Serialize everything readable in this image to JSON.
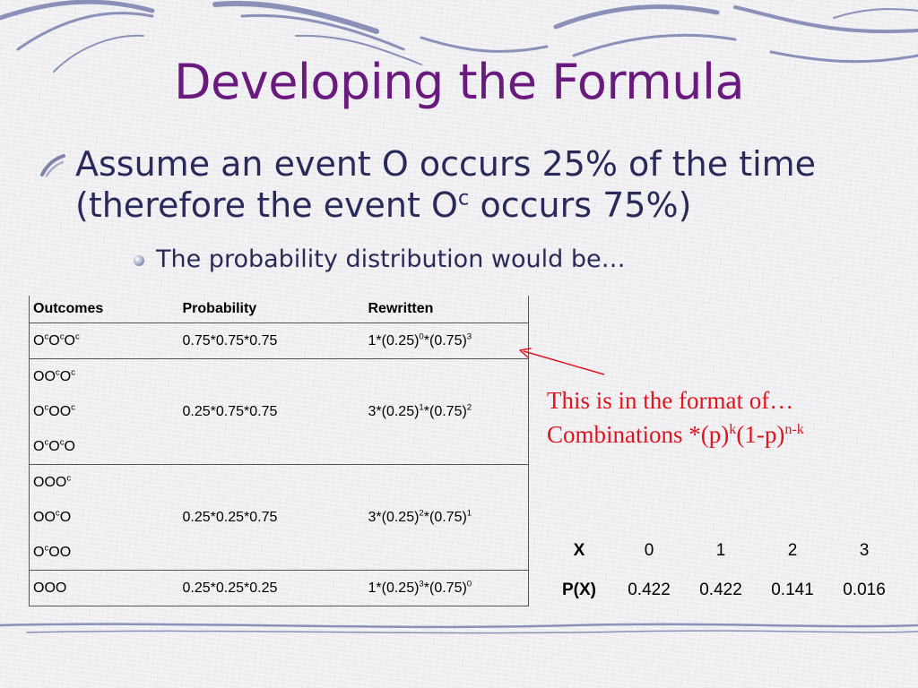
{
  "slide": {
    "title": "Developing the Formula",
    "bullet_main": {
      "line1": "Assume an event O occurs 25% of the time",
      "line2_pre": "(therefore the event O",
      "line2_sup": "c",
      "line2_post": " occurs 75%)"
    },
    "bullet_sub": "The probability distribution would be…"
  },
  "outcomes_table": {
    "headers": {
      "outcomes": "Outcomes",
      "probability": "Probability",
      "rewritten": "Rewritten"
    },
    "groups": [
      {
        "outcomes": [
          [
            {
              "t": "O"
            },
            {
              "s": "c"
            },
            {
              "t": "O"
            },
            {
              "s": "c"
            },
            {
              "t": "O"
            },
            {
              "s": "c"
            }
          ]
        ],
        "probability": "0.75*0.75*0.75",
        "rewritten": [
          {
            "t": "1*(0.25)"
          },
          {
            "s": "0"
          },
          {
            "t": "*(0.75)"
          },
          {
            "s": "3"
          }
        ]
      },
      {
        "outcomes": [
          [
            {
              "t": "OO"
            },
            {
              "s": "c"
            },
            {
              "t": "O"
            },
            {
              "s": "c"
            }
          ],
          [
            {
              "t": "O"
            },
            {
              "s": "c"
            },
            {
              "t": "OO"
            },
            {
              "s": "c"
            }
          ],
          [
            {
              "t": "O"
            },
            {
              "s": "c"
            },
            {
              "t": "O"
            },
            {
              "s": "c"
            },
            {
              "t": "O"
            }
          ]
        ],
        "probability": "0.25*0.75*0.75",
        "rewritten": [
          {
            "t": "3*(0.25)"
          },
          {
            "s": "1"
          },
          {
            "t": "*(0.75)"
          },
          {
            "s": "2"
          }
        ]
      },
      {
        "outcomes": [
          [
            {
              "t": "OOO"
            },
            {
              "s": "c"
            }
          ],
          [
            {
              "t": "OO"
            },
            {
              "s": "c"
            },
            {
              "t": "O"
            }
          ],
          [
            {
              "t": "O"
            },
            {
              "s": "c"
            },
            {
              "t": "OO"
            }
          ]
        ],
        "probability": "0.25*0.25*0.75",
        "rewritten": [
          {
            "t": "3*(0.25)"
          },
          {
            "s": "2"
          },
          {
            "t": "*(0.75)"
          },
          {
            "s": "1"
          }
        ]
      },
      {
        "outcomes": [
          [
            {
              "t": "OOO"
            }
          ]
        ],
        "probability": "0.25*0.25*0.25",
        "rewritten": [
          {
            "t": "1*(0.25)"
          },
          {
            "s": "3"
          },
          {
            "t": "*(0.75)"
          },
          {
            "s": "0"
          }
        ]
      }
    ]
  },
  "format_note": {
    "line1": "This is in the format of…",
    "line2_pre": "Combinations *(p)",
    "line2_sup1": "k",
    "line2_mid": "(1-p)",
    "line2_sup2": "n-k"
  },
  "distribution_table": {
    "x_label": "X",
    "px_label": "P(X)",
    "x_values": [
      "0",
      "1",
      "2",
      "3"
    ],
    "p_values": [
      "0.422",
      "0.422",
      "0.141",
      "0.016"
    ]
  },
  "colors": {
    "title": "#6a1a7e",
    "body_text": "#2a2a5a",
    "annotation": "#e0141e",
    "decoration": "#8a90b8"
  }
}
